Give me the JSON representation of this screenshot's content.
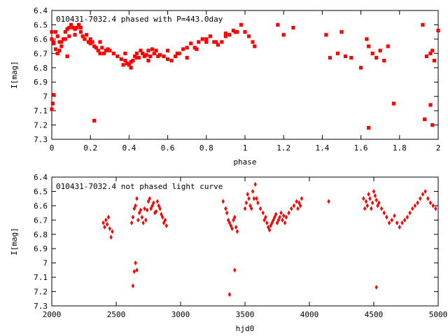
{
  "chart_data": [
    {
      "type": "scatter",
      "title": "010431-7032.4 phased with P=443.0day",
      "xlabel": "phase",
      "ylabel": "I[mag]",
      "xlim": [
        0,
        2
      ],
      "ylim": [
        7.3,
        6.4
      ],
      "y_inverted": true,
      "grid": false,
      "marker": "filled-square",
      "color": "#ff0000",
      "xticks": [
        0,
        0.2,
        0.4,
        0.6,
        0.8,
        1,
        1.2,
        1.4,
        1.6,
        1.8,
        2
      ],
      "xtick_labels": [
        "0",
        "0.2",
        "0.4",
        "0.6",
        "0.8",
        "1",
        "1.2",
        "1.4",
        "1.6",
        "1.8",
        "2"
      ],
      "yticks": [
        6.4,
        6.5,
        6.6,
        6.7,
        6.8,
        6.9,
        7,
        7.1,
        7.2,
        7.3
      ],
      "ytick_labels": [
        "6.4",
        "6.5",
        "6.6",
        "6.7",
        "6.8",
        "6.9",
        "7",
        "7.1",
        "7.2",
        "7.3"
      ],
      "series": [
        {
          "x": [
            0.0,
            0.01,
            0.02,
            0.03,
            0.04,
            0.05,
            0.06,
            0.07,
            0.08,
            0.09,
            0.1,
            0.11,
            0.12,
            0.13,
            0.14,
            0.15,
            0.16,
            0.17,
            0.18,
            0.19,
            0.2,
            0.21,
            0.22,
            0.23,
            0.24,
            0.25,
            0.26,
            0.27,
            0.28,
            0.29,
            0.3,
            0.32,
            0.34,
            0.36,
            0.37,
            0.38,
            0.39,
            0.4,
            0.41,
            0.42,
            0.43,
            0.44,
            0.45,
            0.46,
            0.47,
            0.48,
            0.49,
            0.5,
            0.51,
            0.52,
            0.53,
            0.54,
            0.56,
            0.58,
            0.6,
            0.62,
            0.64,
            0.66,
            0.68,
            0.7,
            0.72,
            0.74,
            0.76,
            0.78,
            0.8,
            0.82,
            0.84,
            0.86,
            0.88,
            0.9,
            0.92,
            0.94,
            0.96,
            0.98,
            1.0,
            1.02,
            1.04,
            1.05,
            1.17,
            1.2,
            1.25,
            1.42,
            1.44,
            1.48,
            1.5,
            1.52,
            1.55,
            1.6,
            1.63,
            1.64,
            1.66,
            1.68,
            1.7,
            1.72,
            1.74,
            1.92,
            1.94,
            1.96,
            1.97,
            1.98,
            2.0,
            0.0,
            0.01,
            0.02,
            0.03,
            0.05,
            0.07,
            0.09,
            0.04,
            0.08,
            0.12,
            0.15,
            0.2,
            0.25,
            0.38,
            0.41,
            0.44,
            0.47,
            0.5,
            0.55,
            0.6,
            0.65,
            0.7,
            0.75,
            0.8,
            0.85,
            0.9,
            0.95,
            0.0,
            0.005,
            0.01,
            0.22,
            1.64,
            1.77,
            1.93,
            1.96,
            1.97
          ],
          "y": [
            6.6,
            6.63,
            6.55,
            6.58,
            6.62,
            6.65,
            6.6,
            6.55,
            6.53,
            6.52,
            6.5,
            6.52,
            6.53,
            6.52,
            6.5,
            6.55,
            6.58,
            6.6,
            6.57,
            6.62,
            6.63,
            6.62,
            6.65,
            6.66,
            6.68,
            6.7,
            6.66,
            6.7,
            6.68,
            6.67,
            6.68,
            6.7,
            6.72,
            6.74,
            6.78,
            6.75,
            6.77,
            6.78,
            6.76,
            6.75,
            6.72,
            6.7,
            6.73,
            6.68,
            6.7,
            6.72,
            6.71,
            6.68,
            6.72,
            6.67,
            6.7,
            6.68,
            6.71,
            6.72,
            6.74,
            6.75,
            6.72,
            6.7,
            6.67,
            6.66,
            6.63,
            6.66,
            6.62,
            6.6,
            6.62,
            6.58,
            6.62,
            6.64,
            6.62,
            6.56,
            6.57,
            6.54,
            6.55,
            6.5,
            6.55,
            6.58,
            6.62,
            6.65,
            6.5,
            6.57,
            6.52,
            6.57,
            6.73,
            6.7,
            6.55,
            6.72,
            6.73,
            6.8,
            6.6,
            6.65,
            6.7,
            6.73,
            6.68,
            6.75,
            6.65,
            6.5,
            6.72,
            6.7,
            6.68,
            6.75,
            6.54,
            6.55,
            6.62,
            6.67,
            6.7,
            6.62,
            6.6,
            6.58,
            6.68,
            6.72,
            6.57,
            6.52,
            6.6,
            6.62,
            6.7,
            6.8,
            6.73,
            6.7,
            6.75,
            6.72,
            6.68,
            6.7,
            6.73,
            6.67,
            6.6,
            6.62,
            6.58,
            6.55,
            7.09,
            7.05,
            6.99,
            7.17,
            7.22,
            7.05,
            7.16,
            7.06,
            7.2
          ]
        }
      ]
    },
    {
      "type": "scatter",
      "title": "010431-7032.4 not phased light curve",
      "xlabel": "hjd0",
      "ylabel": "I[mag]",
      "xlim": [
        2000,
        5000
      ],
      "ylim": [
        7.3,
        6.4
      ],
      "y_inverted": true,
      "grid": false,
      "marker": "filled-diamond",
      "color": "#ff0000",
      "xticks": [
        2000,
        2500,
        3000,
        3500,
        4000,
        4500,
        5000
      ],
      "xtick_labels": [
        "2000",
        "2500",
        "3000",
        "3500",
        "4000",
        "4500",
        "5000"
      ],
      "yticks": [
        6.4,
        6.5,
        6.6,
        6.7,
        6.8,
        6.9,
        7,
        7.1,
        7.2,
        7.3
      ],
      "ytick_labels": [
        "6.4",
        "6.5",
        "6.6",
        "6.7",
        "6.8",
        "6.9",
        "7",
        "7.1",
        "7.2",
        "7.3"
      ],
      "series": [
        {
          "x": [
            2400,
            2410,
            2420,
            2430,
            2440,
            2450,
            2460,
            2470,
            2620,
            2630,
            2640,
            2650,
            2660,
            2670,
            2680,
            2690,
            2700,
            2710,
            2720,
            2730,
            2740,
            2750,
            2760,
            2770,
            2780,
            2790,
            2800,
            2810,
            2820,
            2830,
            2840,
            2850,
            2860,
            2870,
            2880,
            2890,
            2630,
            2640,
            2650,
            2660,
            3330,
            3350,
            3360,
            3370,
            3380,
            3390,
            3400,
            3410,
            3420,
            3430,
            3440,
            3500,
            3510,
            3520,
            3530,
            3540,
            3550,
            3560,
            3570,
            3580,
            3590,
            3600,
            3620,
            3640,
            3650,
            3660,
            3670,
            3680,
            3690,
            3700,
            3710,
            3720,
            3730,
            3740,
            3750,
            3760,
            3770,
            3780,
            3790,
            3800,
            3810,
            3820,
            3840,
            3860,
            3880,
            3900,
            3910,
            3920,
            3930,
            3940,
            4150,
            3380,
            3420,
            4420,
            4430,
            4440,
            4450,
            4460,
            4470,
            4480,
            4490,
            4500,
            4510,
            4520,
            4530,
            4540,
            4560,
            4580,
            4600,
            4620,
            4640,
            4660,
            4680,
            4700,
            4720,
            4740,
            4760,
            4780,
            4800,
            4820,
            4840,
            4860,
            4880,
            4900,
            4920,
            4940,
            4960,
            4980,
            4520
          ],
          "y": [
            6.72,
            6.75,
            6.7,
            6.73,
            6.68,
            6.76,
            6.82,
            6.78,
            6.72,
            6.68,
            6.62,
            6.6,
            6.55,
            6.7,
            6.65,
            6.63,
            6.68,
            6.72,
            6.62,
            6.7,
            6.63,
            6.57,
            6.55,
            6.62,
            6.6,
            6.58,
            6.65,
            6.64,
            6.57,
            6.6,
            6.62,
            6.66,
            6.68,
            6.72,
            6.7,
            6.74,
            7.16,
            7.06,
            7.0,
            7.05,
            6.57,
            6.62,
            6.65,
            6.7,
            6.72,
            6.74,
            6.76,
            6.7,
            6.68,
            6.75,
            6.78,
            6.62,
            6.58,
            6.52,
            6.55,
            6.6,
            6.62,
            6.5,
            6.55,
            6.45,
            6.55,
            6.58,
            6.62,
            6.65,
            6.7,
            6.68,
            6.72,
            6.75,
            6.77,
            6.74,
            6.72,
            6.7,
            6.68,
            6.66,
            6.72,
            6.7,
            6.68,
            6.65,
            6.7,
            6.67,
            6.72,
            6.68,
            6.65,
            6.62,
            6.6,
            6.57,
            6.62,
            6.58,
            6.6,
            6.55,
            6.57,
            7.22,
            7.05,
            6.55,
            6.62,
            6.57,
            6.6,
            6.52,
            6.55,
            6.62,
            6.58,
            6.5,
            6.53,
            6.56,
            6.6,
            6.58,
            6.62,
            6.65,
            6.68,
            6.72,
            6.7,
            6.67,
            6.72,
            6.75,
            6.72,
            6.7,
            6.68,
            6.65,
            6.62,
            6.6,
            6.58,
            6.55,
            6.52,
            6.5,
            6.55,
            6.58,
            6.6,
            6.62,
            7.17
          ]
        }
      ]
    }
  ]
}
